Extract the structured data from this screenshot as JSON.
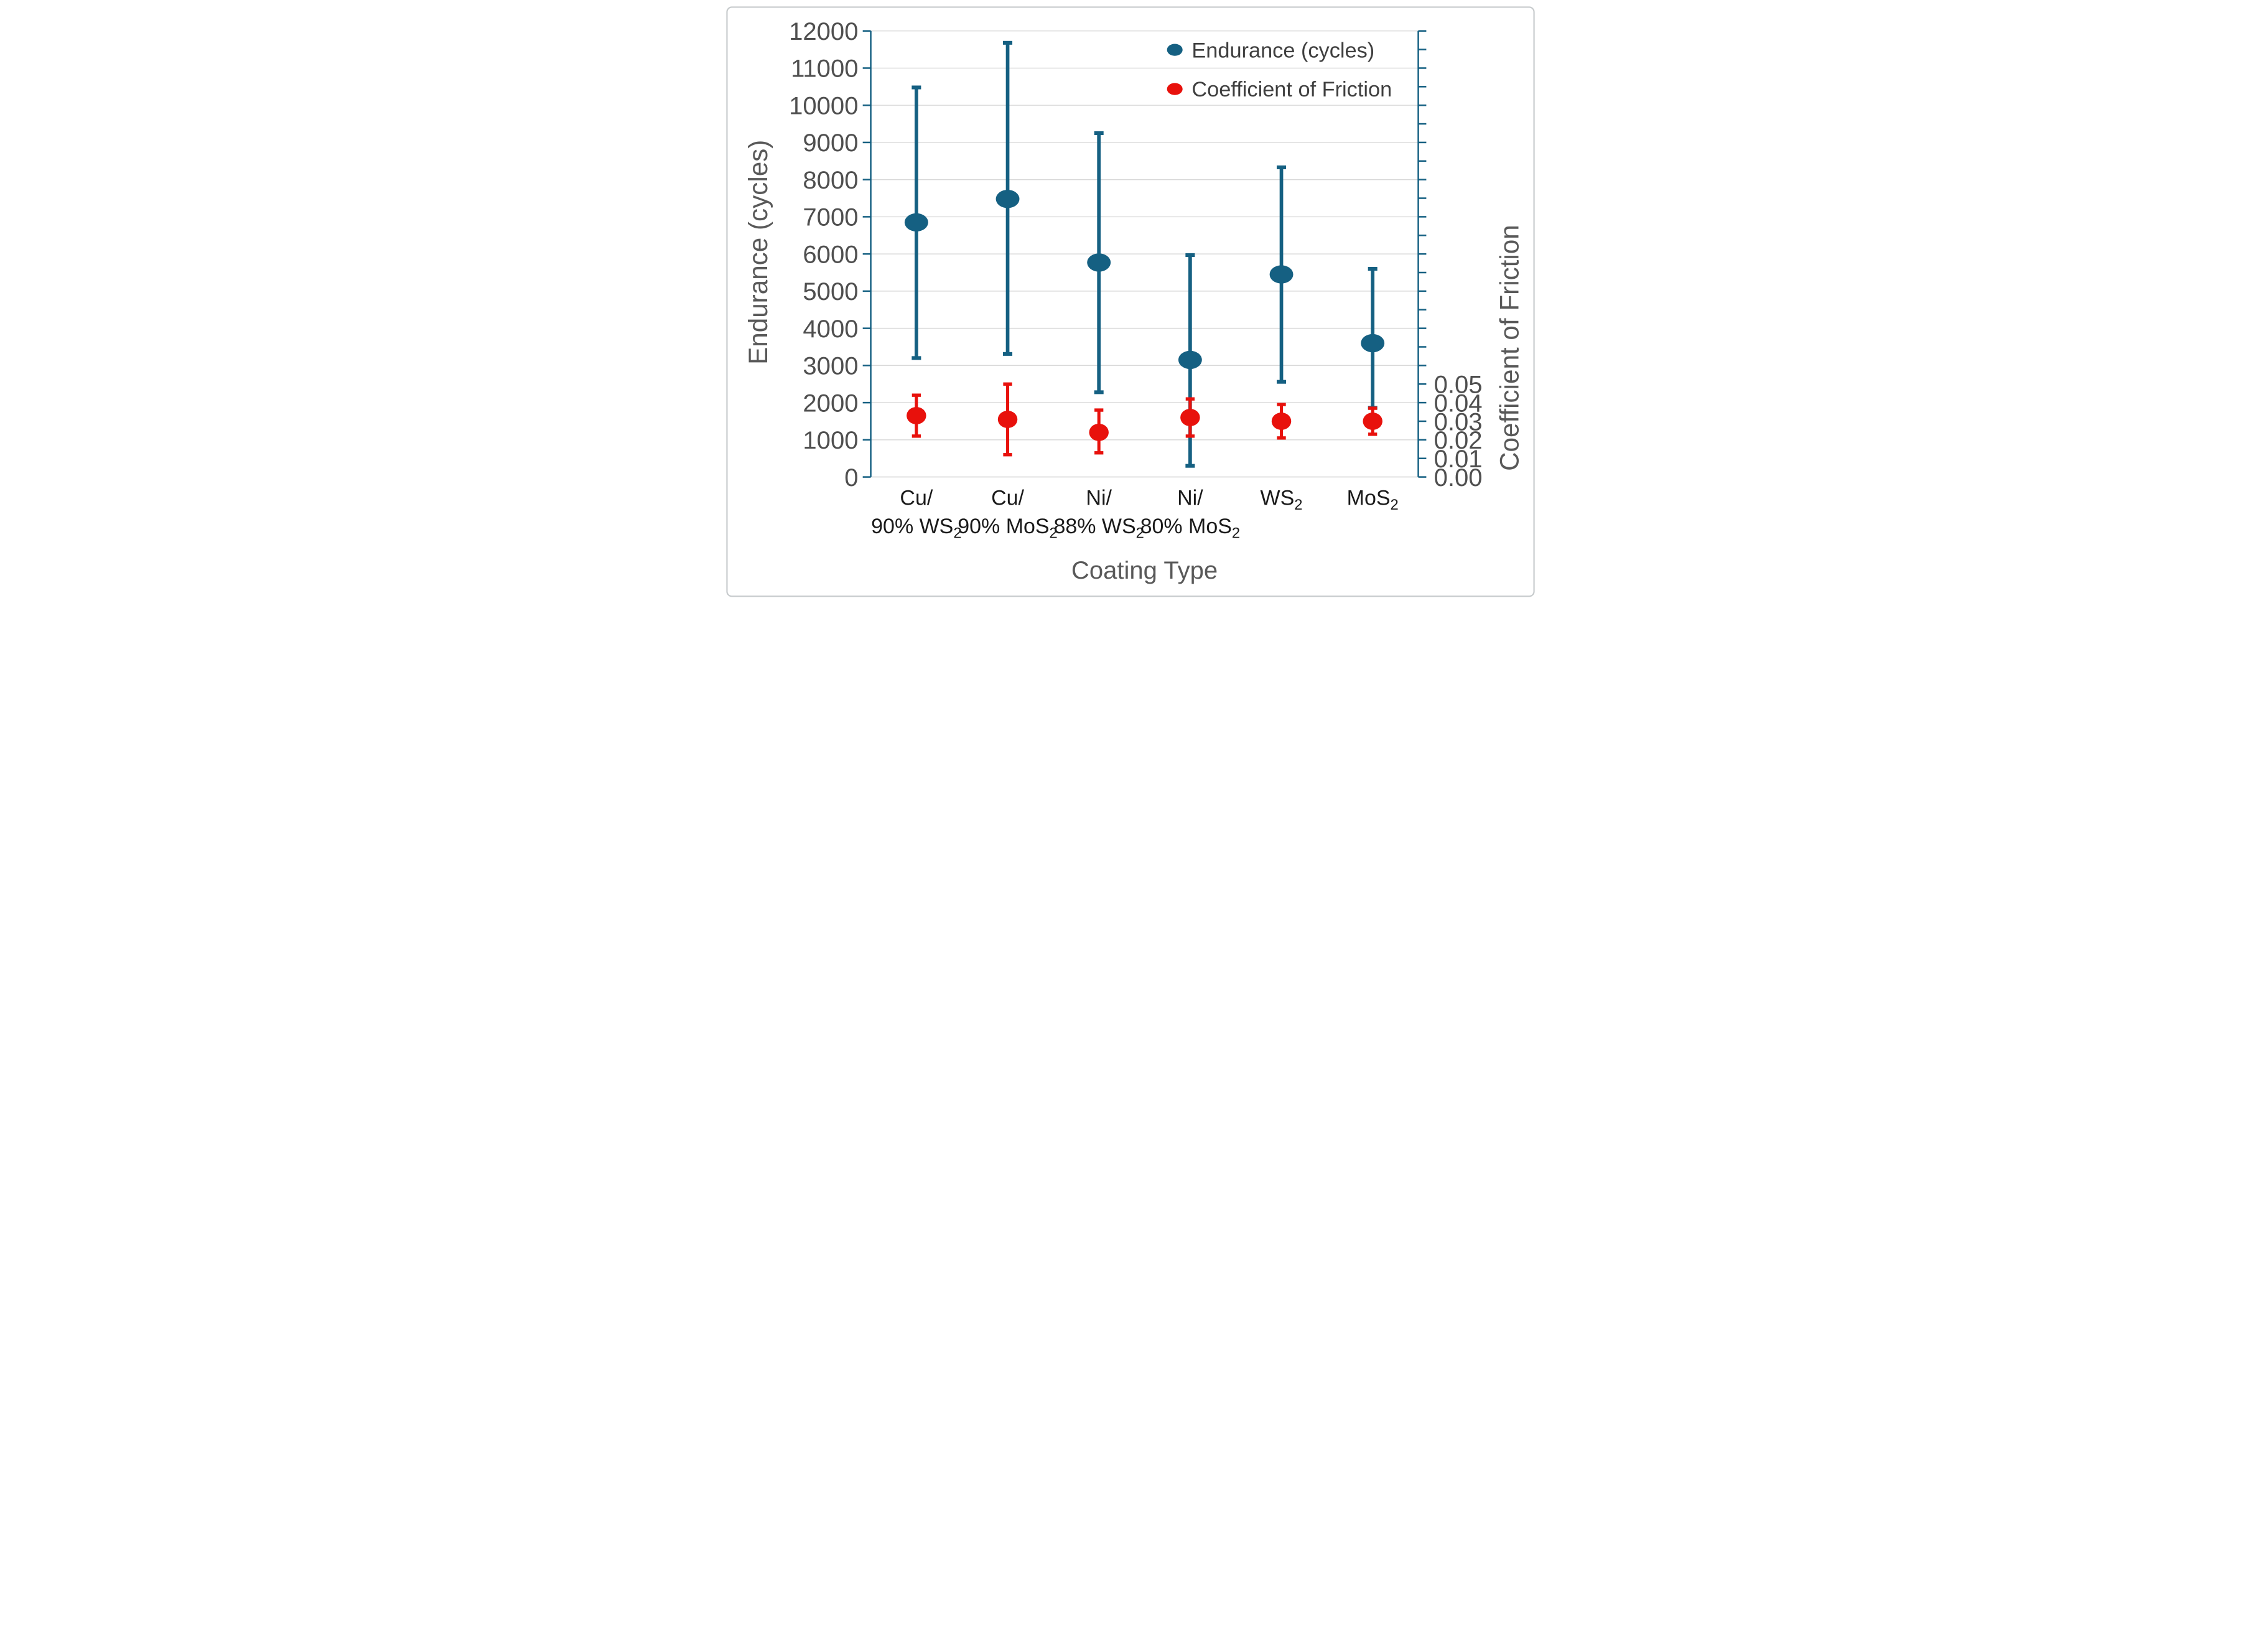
{
  "chart_data": {
    "type": "scatter",
    "subtype": "dual-axis points with error bars",
    "title": "",
    "xlabel": "Coating Type",
    "grid": "horizontal",
    "legend_position": "top-right-inside",
    "categories": [
      {
        "id": "cu-90-ws2",
        "lines": [
          [
            {
              "t": "Cu/"
            }
          ],
          [
            {
              "t": "90% WS"
            },
            {
              "t": "2",
              "sub": true
            }
          ]
        ]
      },
      {
        "id": "cu-90-mos2",
        "lines": [
          [
            {
              "t": "Cu/"
            }
          ],
          [
            {
              "t": "90% MoS"
            },
            {
              "t": "2",
              "sub": true
            }
          ]
        ]
      },
      {
        "id": "ni-88-ws2",
        "lines": [
          [
            {
              "t": "Ni/"
            }
          ],
          [
            {
              "t": "88% WS"
            },
            {
              "t": "2",
              "sub": true
            }
          ]
        ]
      },
      {
        "id": "ni-80-mos2",
        "lines": [
          [
            {
              "t": "Ni/"
            }
          ],
          [
            {
              "t": "80% MoS"
            },
            {
              "t": "2",
              "sub": true
            }
          ]
        ]
      },
      {
        "id": "ws2",
        "lines": [
          [
            {
              "t": "WS"
            },
            {
              "t": "2",
              "sub": true
            }
          ]
        ]
      },
      {
        "id": "mos2",
        "lines": [
          [
            {
              "t": "MoS"
            },
            {
              "t": "2",
              "sub": true
            }
          ]
        ]
      }
    ],
    "y_primary": {
      "title": "Endurance (cycles)",
      "min": 0,
      "max": 12000,
      "major_unit": 1000,
      "tick_labels": [
        "0",
        "1000",
        "2000",
        "3000",
        "4000",
        "5000",
        "6000",
        "7000",
        "8000",
        "9000",
        "10000",
        "11000",
        "12000"
      ]
    },
    "y_secondary": {
      "title": "Coefficient of Friction",
      "min": 0,
      "max": 0.24,
      "tick_step": 0.01,
      "labeled_ticks": [
        {
          "value": 0.0,
          "label": "0.00"
        },
        {
          "value": 0.01,
          "label": "0.01"
        },
        {
          "value": 0.02,
          "label": "0.02"
        },
        {
          "value": 0.03,
          "label": "0.03"
        },
        {
          "value": 0.04,
          "label": "0.04"
        },
        {
          "value": 0.05,
          "label": "0.05"
        }
      ]
    },
    "series": [
      {
        "name": "Endurance (cycles)",
        "axis": "primary",
        "color": "#156082",
        "points": [
          {
            "mean": 6850,
            "upper": 10480,
            "lower": 3200
          },
          {
            "mean": 7480,
            "upper": 11680,
            "lower": 3310
          },
          {
            "mean": 5770,
            "upper": 9250,
            "lower": 2280
          },
          {
            "mean": 3150,
            "upper": 5970,
            "lower": 300
          },
          {
            "mean": 5450,
            "upper": 8330,
            "lower": 2560
          },
          {
            "mean": 3600,
            "upper": 5600,
            "lower": 1860
          }
        ]
      },
      {
        "name": "Coefficient of Friction",
        "axis": "secondary",
        "color": "#e8110c",
        "points": [
          {
            "mean": 0.033,
            "upper": 0.044,
            "lower": 0.022
          },
          {
            "mean": 0.031,
            "upper": 0.05,
            "lower": 0.012
          },
          {
            "mean": 0.024,
            "upper": 0.036,
            "lower": 0.013
          },
          {
            "mean": 0.032,
            "upper": 0.042,
            "lower": 0.022
          },
          {
            "mean": 0.03,
            "upper": 0.039,
            "lower": 0.021
          },
          {
            "mean": 0.03,
            "upper": 0.037,
            "lower": 0.023
          }
        ]
      }
    ],
    "legend": [
      {
        "label": "Endurance (cycles)",
        "color": "#156082"
      },
      {
        "label": "Coefficient of Friction",
        "color": "#e8110c"
      }
    ],
    "colors": {
      "axis_line": "#156082",
      "gridline": "#d9d9d9",
      "gridline_zero": "#cccccc",
      "tick_label": "#4f4f4f",
      "axis_title": "#595959",
      "category_label": "#1a1a1a",
      "legend_text": "#3f3f3f",
      "figure_border": "#c6cacc",
      "background": "#ffffff"
    }
  }
}
